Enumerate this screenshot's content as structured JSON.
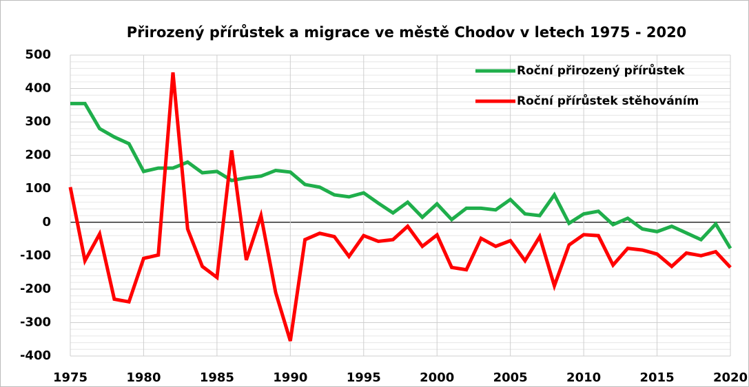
{
  "chart_data": {
    "type": "line",
    "title": "Přirozený přírůstek a migrace ve městě Chodov v letech 1975 - 2020",
    "x": [
      1975,
      1976,
      1977,
      1978,
      1979,
      1980,
      1981,
      1982,
      1983,
      1984,
      1985,
      1986,
      1987,
      1988,
      1989,
      1990,
      1991,
      1992,
      1993,
      1994,
      1995,
      1996,
      1997,
      1998,
      1999,
      2000,
      2001,
      2002,
      2003,
      2004,
      2005,
      2006,
      2007,
      2008,
      2009,
      2010,
      2011,
      2012,
      2013,
      2014,
      2015,
      2016,
      2017,
      2018,
      2019,
      2020
    ],
    "series": [
      {
        "name": "Roční přirozený přírůstek",
        "color": "#1fae4b",
        "values": [
          355,
          355,
          280,
          255,
          235,
          152,
          162,
          162,
          180,
          148,
          152,
          125,
          133,
          138,
          155,
          150,
          113,
          105,
          82,
          76,
          88,
          57,
          28,
          60,
          15,
          55,
          8,
          42,
          42,
          37,
          68,
          25,
          20,
          82,
          -3,
          25,
          33,
          -7,
          12,
          -20,
          -28,
          -12,
          -32,
          -52,
          -5,
          -78
        ]
      },
      {
        "name": "Roční přírůstek stěhováním",
        "color": "#ff0000",
        "values": [
          105,
          -115,
          -35,
          -230,
          -238,
          -108,
          -98,
          448,
          -20,
          -132,
          -165,
          215,
          -113,
          20,
          -210,
          -355,
          -52,
          -33,
          -43,
          -102,
          -40,
          -57,
          -52,
          -12,
          -72,
          -38,
          -135,
          -142,
          -48,
          -72,
          -55,
          -115,
          -43,
          -190,
          -68,
          -37,
          -40,
          -128,
          -78,
          -83,
          -95,
          -132,
          -92,
          -100,
          -88,
          -135
        ]
      }
    ],
    "xlim": [
      1975,
      2020
    ],
    "xticks": [
      1975,
      1980,
      1985,
      1990,
      1995,
      2000,
      2005,
      2010,
      2015,
      2020
    ],
    "ylim": [
      -400,
      500
    ],
    "yticks": [
      -400,
      -300,
      -200,
      -100,
      0,
      100,
      200,
      300,
      400,
      500
    ],
    "grid": true,
    "legend": "upper right"
  }
}
